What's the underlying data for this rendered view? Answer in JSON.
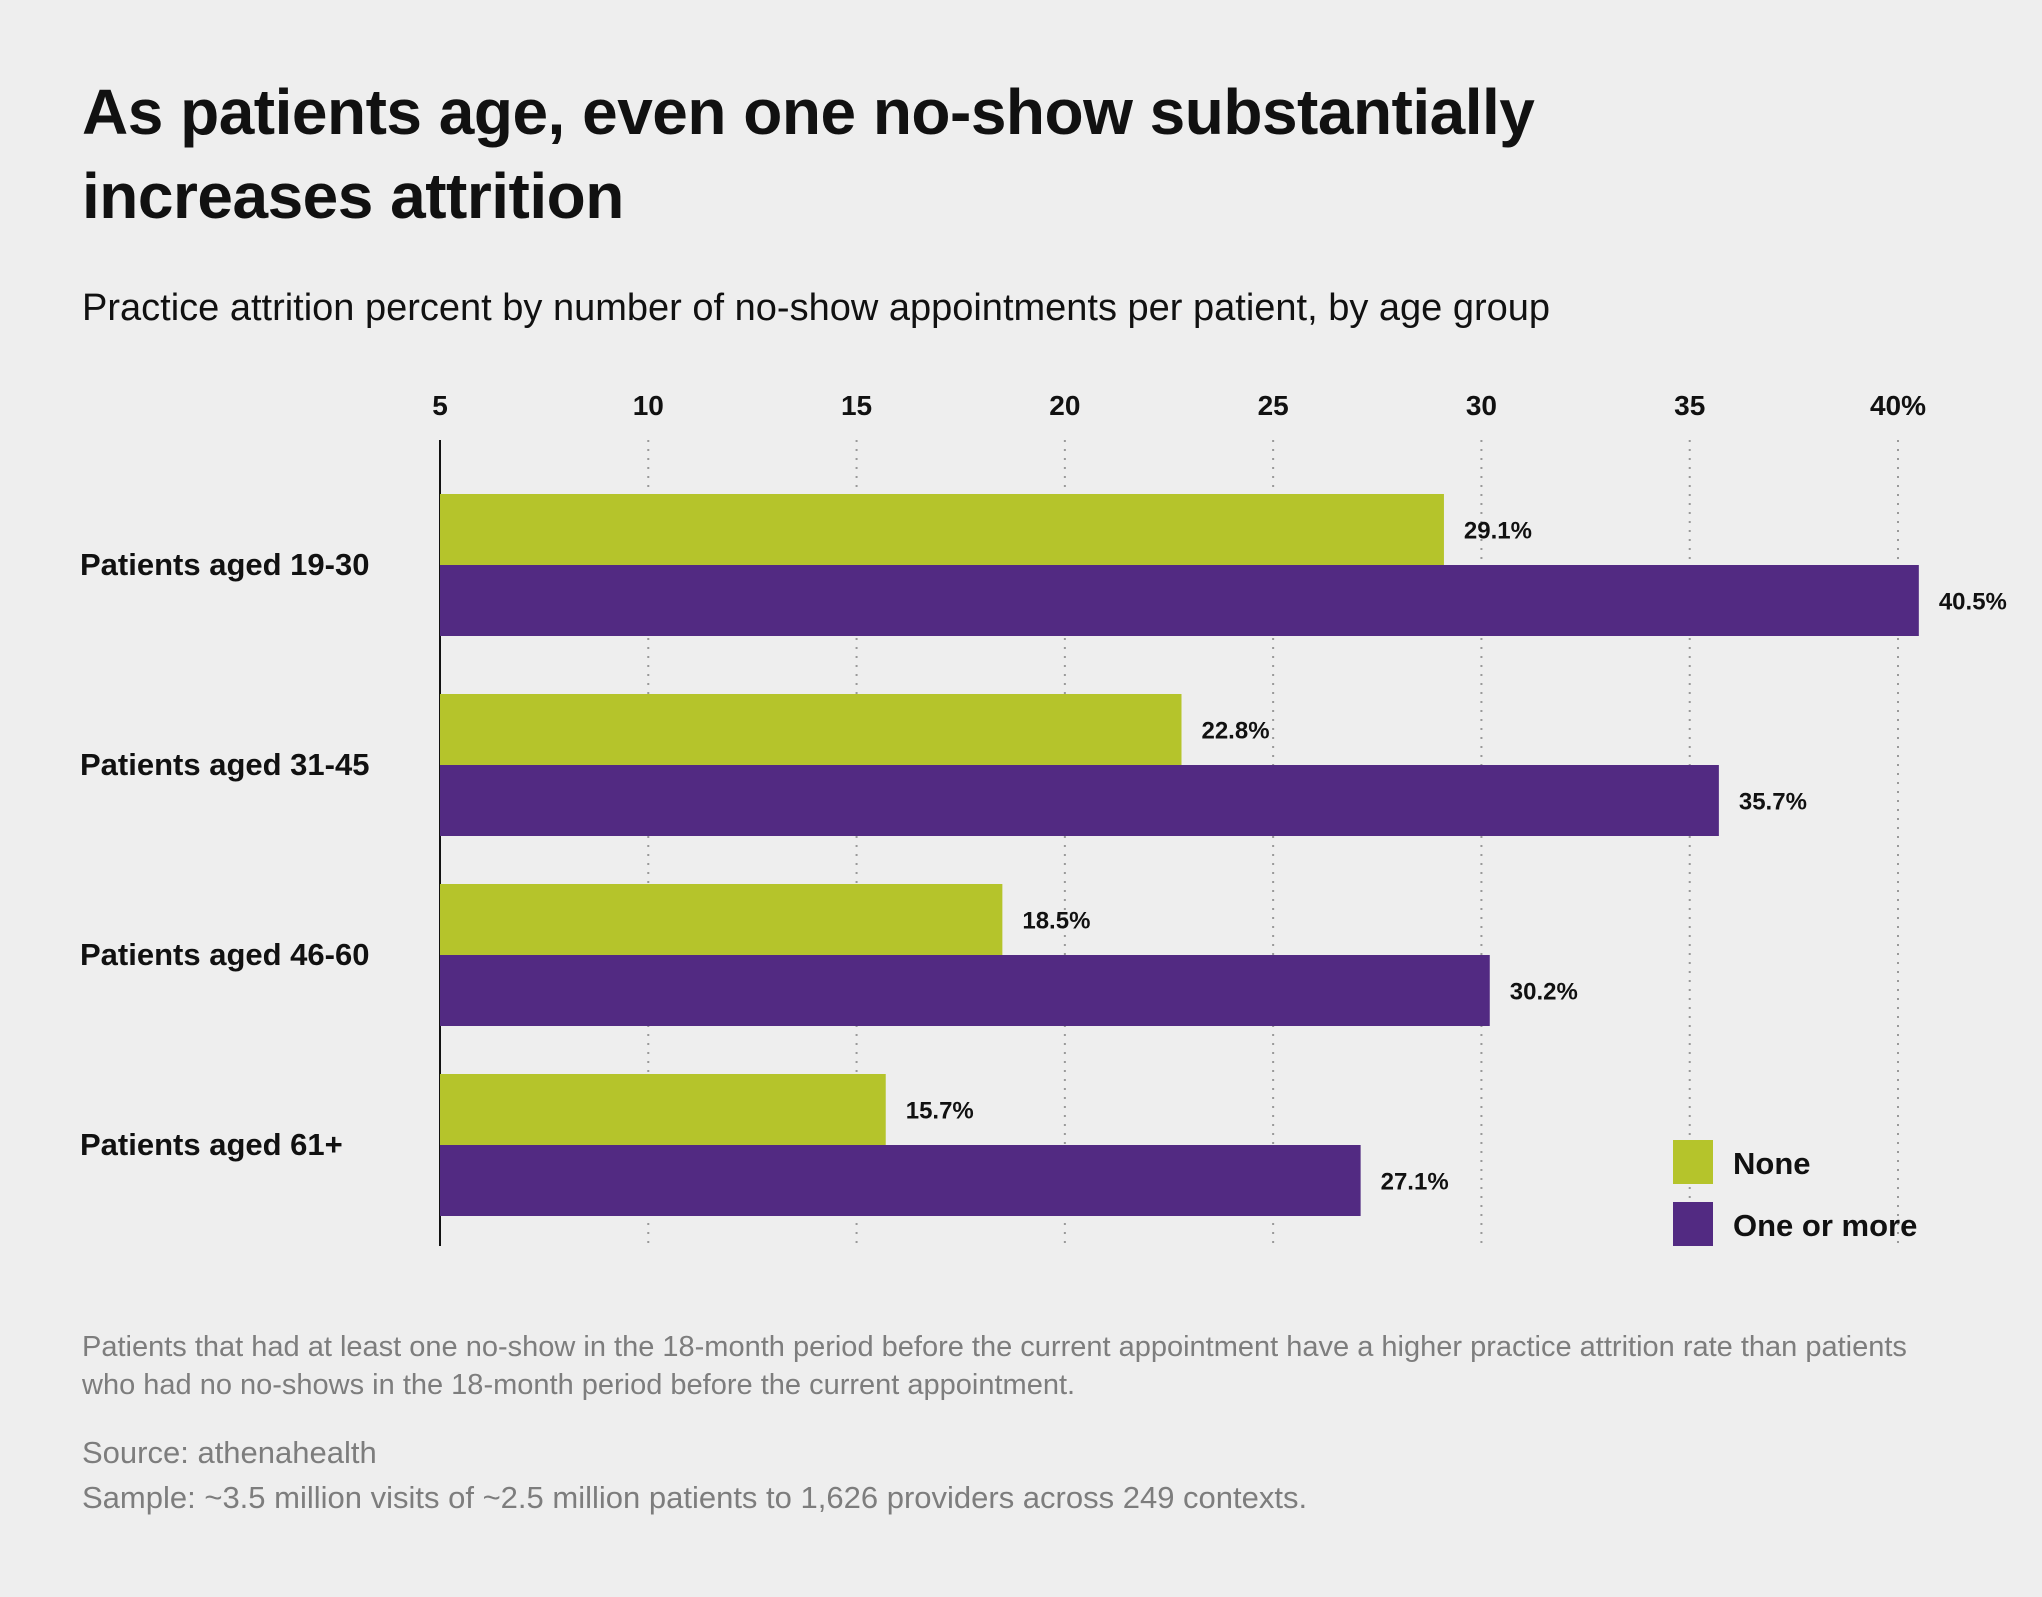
{
  "title": "As patients age, even one no-show substantially increases attrition",
  "subtitle": "Practice attrition percent by number of no-show appointments per patient, by age group",
  "note": "Patients that had at least one no-show in the 18-month period before the current appointment have a higher practice attrition rate than patients who had no no-shows in the 18-month period before the current appointment.",
  "source": "Source: athenahealth",
  "sample": "Sample: ~3.5 million visits of ~2.5 million patients to 1,626 providers across 249 contexts.",
  "colors": {
    "none": "#b5c42b",
    "one_or_more": "#522a82",
    "grid": "#999999",
    "axis": "#111111"
  },
  "chart_data": {
    "type": "bar",
    "orientation": "horizontal",
    "categories": [
      "Patients aged 19-30",
      "Patients aged 31-45",
      "Patients aged 46-60",
      "Patients aged 61+"
    ],
    "series": [
      {
        "name": "None",
        "values": [
          29.1,
          22.8,
          18.5,
          15.7
        ],
        "labels": [
          "29.1%",
          "22.8%",
          "18.5%",
          "15.7%"
        ]
      },
      {
        "name": "One or more",
        "values": [
          40.5,
          35.7,
          30.2,
          27.1
        ],
        "labels": [
          "40.5%",
          "35.7%",
          "30.2%",
          "27.1%"
        ]
      }
    ],
    "xlim": [
      5,
      40
    ],
    "xticks": [
      5,
      10,
      15,
      20,
      25,
      30,
      35,
      40
    ],
    "xtick_labels": [
      "5",
      "10",
      "15",
      "20",
      "25",
      "30",
      "35",
      "40%"
    ],
    "grid": "vertical dotted",
    "xaxis_position": "top",
    "legend_placement": "bottom-right"
  }
}
